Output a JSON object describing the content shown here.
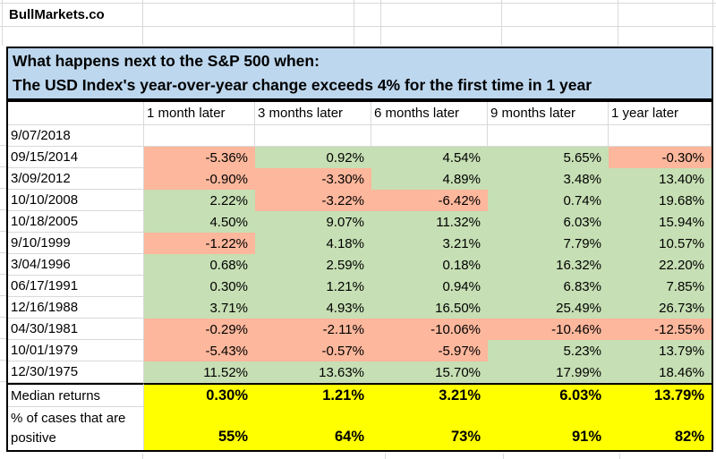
{
  "brand": "BullMarkets.co",
  "title": {
    "line1": "What happens next to the S&P 500 when:",
    "line2": "The USD Index's year-over-year change exceeds 4% for the first time in 1 year"
  },
  "table": {
    "columns": [
      "1 month later",
      "3 months later",
      "6 months later",
      "9 months later",
      "1 year later"
    ],
    "rows": [
      {
        "date": "9/07/2018",
        "values": [
          null,
          null,
          null,
          null,
          null
        ]
      },
      {
        "date": "09/15/2014",
        "values": [
          "-5.36%",
          "0.92%",
          "4.54%",
          "5.65%",
          "-0.30%"
        ]
      },
      {
        "date": "3/09/2012",
        "values": [
          "-0.90%",
          "-3.30%",
          "4.89%",
          "3.48%",
          "13.40%"
        ]
      },
      {
        "date": "10/10/2008",
        "values": [
          "2.22%",
          "-3.22%",
          "-6.42%",
          "0.74%",
          "19.68%"
        ]
      },
      {
        "date": "10/18/2005",
        "values": [
          "4.50%",
          "9.07%",
          "11.32%",
          "6.03%",
          "15.94%"
        ]
      },
      {
        "date": "9/10/1999",
        "values": [
          "-1.22%",
          "4.18%",
          "3.21%",
          "7.79%",
          "10.57%"
        ]
      },
      {
        "date": "3/04/1996",
        "values": [
          "0.68%",
          "2.59%",
          "0.18%",
          "16.32%",
          "22.20%"
        ]
      },
      {
        "date": "06/17/1991",
        "values": [
          "0.30%",
          "1.21%",
          "0.94%",
          "6.83%",
          "7.85%"
        ]
      },
      {
        "date": "12/16/1988",
        "values": [
          "3.71%",
          "4.93%",
          "16.50%",
          "25.49%",
          "26.73%"
        ]
      },
      {
        "date": "04/30/1981",
        "values": [
          "-0.29%",
          "-2.11%",
          "-10.06%",
          "-10.46%",
          "-12.55%"
        ]
      },
      {
        "date": "10/01/1979",
        "values": [
          "-5.43%",
          "-0.57%",
          "-5.97%",
          "5.23%",
          "13.79%"
        ]
      },
      {
        "date": "12/30/1975",
        "values": [
          "11.52%",
          "13.63%",
          "15.70%",
          "17.99%",
          "18.46%"
        ]
      }
    ],
    "median": {
      "label": "Median returns",
      "values": [
        "0.30%",
        "1.21%",
        "3.21%",
        "6.03%",
        "13.79%"
      ]
    },
    "pct_positive": {
      "label_line1": "% of cases that are",
      "label_line2": "positive",
      "values": [
        "55%",
        "64%",
        "73%",
        "91%",
        "82%"
      ]
    }
  },
  "colors": {
    "positive_fill": "#C6DFB4",
    "negative_fill": "#FDB79C",
    "title_fill": "#BDD7EE",
    "summary_fill": "#FFFF00",
    "gridline": "#D9D9D9",
    "border": "#000000"
  }
}
